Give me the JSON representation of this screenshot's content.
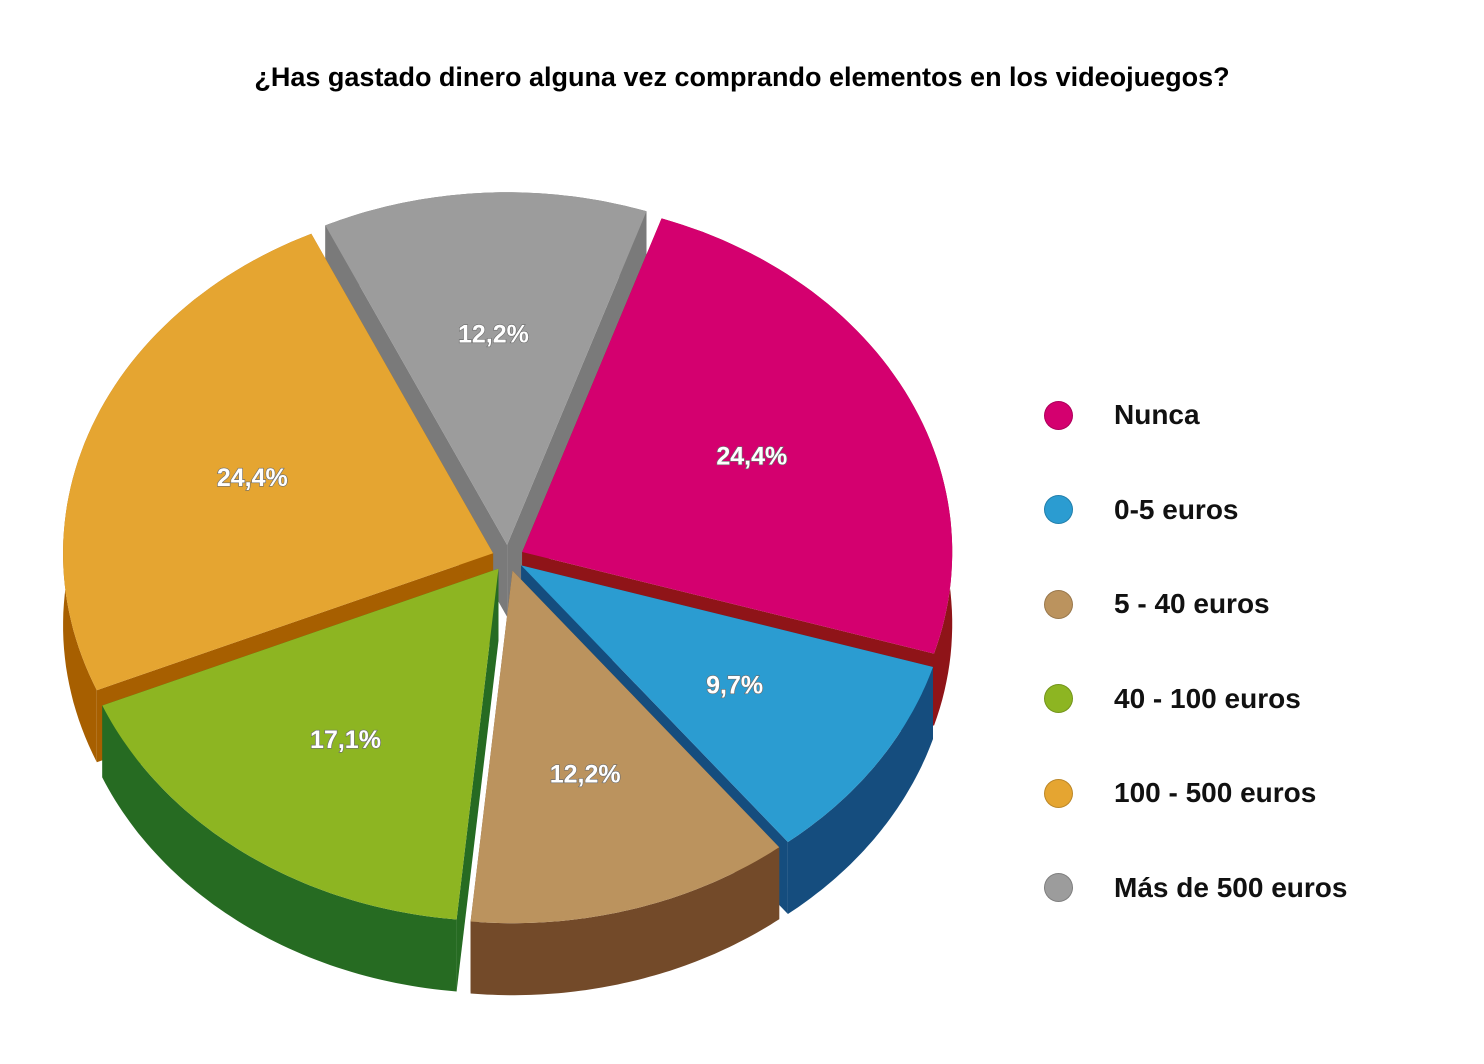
{
  "chart_data": {
    "type": "pie",
    "title": "¿Has gastado dinero alguna vez comprando elementos en los videojuegos?",
    "unit": "%",
    "legend_position": "right",
    "slices": [
      {
        "label": "Nunca",
        "value": 24.4,
        "value_label": "24,4%",
        "color": "#d4006f",
        "side_color": "#8f1418"
      },
      {
        "label": "0-5 euros",
        "value": 9.7,
        "value_label": "9,7%",
        "color": "#2b9cd1",
        "side_color": "#154d7e"
      },
      {
        "label": "5 - 40 euros",
        "value": 12.2,
        "value_label": "12,2%",
        "color": "#bb935e",
        "side_color": "#734a29"
      },
      {
        "label": "40 - 100 euros",
        "value": 17.1,
        "value_label": "17,1%",
        "color": "#8db522",
        "side_color": "#266b22"
      },
      {
        "label": "100 - 500 euros",
        "value": 24.4,
        "value_label": "24,4%",
        "color": "#e5a531",
        "side_color": "#a75f00"
      },
      {
        "label": "Más de 500 euros",
        "value": 12.2,
        "value_label": "12,2%",
        "color": "#9c9c9c",
        "side_color": "#7a7a7a"
      }
    ]
  }
}
